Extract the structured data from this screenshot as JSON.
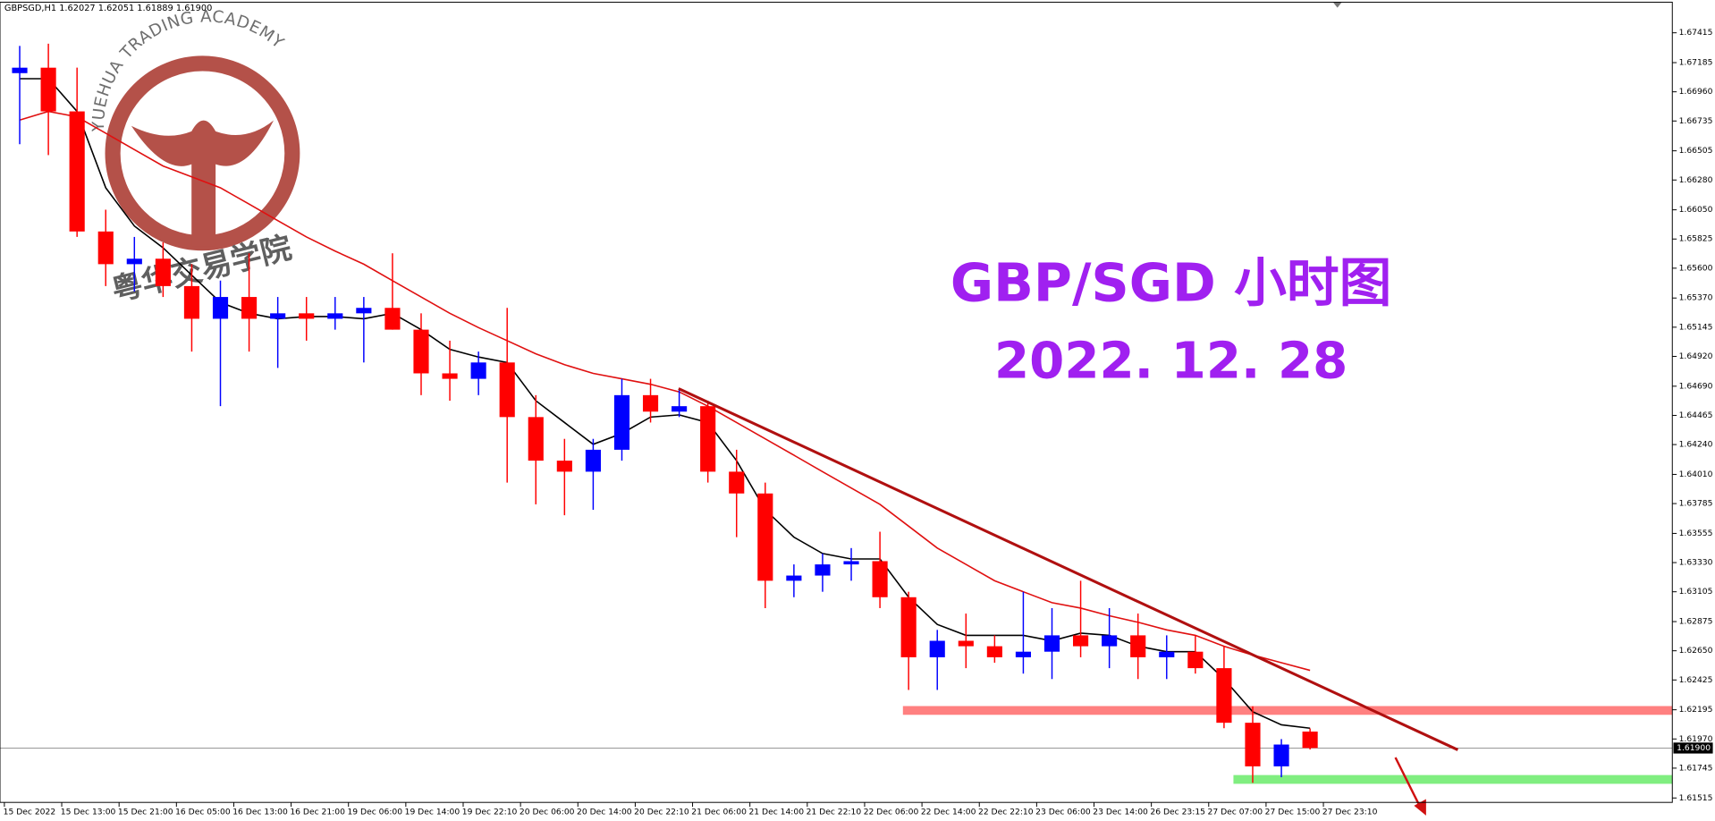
{
  "chart_data": {
    "type": "candlestick",
    "header": "GBPSGD,H1  1.62027 1.62051 1.61889 1.61900",
    "annotations": [
      "GBP/SGD 小时图",
      "2022. 12. 28"
    ],
    "watermark": [
      "YUEHUA TRADING ACADEMY",
      "粤华交易学院"
    ],
    "bull_color": "#0000ff",
    "bear_color": "#ff0000",
    "open": [
      1.67104,
      1.67146,
      1.66809,
      1.65883,
      1.65631,
      1.65673,
      1.65462,
      1.6521,
      1.65378,
      1.6521,
      1.65252,
      1.6521,
      1.65252,
      1.65294,
      1.65126,
      1.64789,
      1.64747,
      1.64873,
      1.64452,
      1.64116,
      1.64031,
      1.642,
      1.64621,
      1.64494,
      1.64536,
      1.64031,
      1.63863,
      1.6319,
      1.6323,
      1.63316,
      1.63341,
      1.63063,
      1.626,
      1.62727,
      1.62685,
      1.626,
      1.62643,
      1.62769,
      1.62685,
      1.62769,
      1.626,
      1.62643,
      1.62516,
      1.62095,
      1.61759,
      1.62027
    ],
    "high": [
      1.67314,
      1.67331,
      1.67146,
      1.66051,
      1.65841,
      1.65799,
      1.65631,
      1.65504,
      1.65715,
      1.65378,
      1.65378,
      1.65378,
      1.65378,
      1.65715,
      1.65252,
      1.65041,
      1.64957,
      1.65294,
      1.64621,
      1.64284,
      1.64284,
      1.64747,
      1.64747,
      1.64663,
      1.64578,
      1.642,
      1.63947,
      1.63316,
      1.634,
      1.63442,
      1.63568,
      1.63105,
      1.62811,
      1.62937,
      1.62769,
      1.63105,
      1.62979,
      1.6319,
      1.62979,
      1.62937,
      1.62769,
      1.62769,
      1.62685,
      1.62222,
      1.61969,
      1.62051
    ],
    "low": [
      1.66556,
      1.66472,
      1.65841,
      1.65462,
      1.6542,
      1.65378,
      1.64957,
      1.64536,
      1.64957,
      1.64831,
      1.65041,
      1.65126,
      1.64873,
      1.65126,
      1.64621,
      1.64578,
      1.64621,
      1.63947,
      1.63779,
      1.63695,
      1.63737,
      1.64116,
      1.6441,
      1.64452,
      1.63947,
      1.63526,
      1.62979,
      1.63063,
      1.63105,
      1.6319,
      1.62979,
      1.62348,
      1.62348,
      1.62516,
      1.62558,
      1.62474,
      1.62432,
      1.626,
      1.62516,
      1.62432,
      1.62432,
      1.62474,
      1.62053,
      1.61632,
      1.61675,
      1.61889
    ],
    "close": [
      1.67146,
      1.66809,
      1.65883,
      1.65631,
      1.65673,
      1.65462,
      1.6521,
      1.65378,
      1.6521,
      1.65252,
      1.6521,
      1.65252,
      1.65294,
      1.65126,
      1.64789,
      1.64747,
      1.64873,
      1.64452,
      1.64116,
      1.64031,
      1.642,
      1.64621,
      1.64494,
      1.64536,
      1.64031,
      1.63863,
      1.6319,
      1.6323,
      1.63316,
      1.63341,
      1.63063,
      1.626,
      1.62727,
      1.62685,
      1.626,
      1.62643,
      1.62769,
      1.62685,
      1.62769,
      1.626,
      1.62643,
      1.62516,
      1.62095,
      1.61759,
      1.61927,
      1.619
    ],
    "lines": [
      {
        "color": "#000000",
        "values": [
          1.67061,
          1.67061,
          1.66809,
          1.6622,
          1.65925,
          1.65757,
          1.65546,
          1.65336,
          1.65252,
          1.6521,
          1.65227,
          1.65227,
          1.6521,
          1.65252,
          1.65126,
          1.64974,
          1.64915,
          1.64873,
          1.64578,
          1.6441,
          1.64242,
          1.64326,
          1.64452,
          1.64469,
          1.6441,
          1.64116,
          1.63737,
          1.63526,
          1.634,
          1.63358,
          1.63358,
          1.63063,
          1.62853,
          1.62769,
          1.62769,
          1.62769,
          1.62727,
          1.62786,
          1.62769,
          1.62685,
          1.62643,
          1.62643,
          1.62432,
          1.6218,
          1.62079,
          1.62053
        ]
      },
      {
        "color": "#e01010",
        "values": [
          1.66742,
          1.66809,
          1.66767,
          1.66641,
          1.66514,
          1.66388,
          1.66304,
          1.6622,
          1.66094,
          1.65967,
          1.65841,
          1.65732,
          1.65631,
          1.65504,
          1.65378,
          1.65252,
          1.65142,
          1.65041,
          1.6494,
          1.64856,
          1.64789,
          1.64747,
          1.64705,
          1.64646,
          1.64536,
          1.6441,
          1.64284,
          1.64158,
          1.64031,
          1.63905,
          1.63779,
          1.63611,
          1.63442,
          1.63316,
          1.6319,
          1.63105,
          1.63021,
          1.62979,
          1.6292,
          1.6287,
          1.62811,
          1.62769,
          1.62685,
          1.62617,
          1.62558,
          1.62499
        ]
      }
    ],
    "zones": [
      {
        "price": 1.6219,
        "color": "#ff8080"
      },
      {
        "price": 1.61658,
        "color": "#80ee80"
      }
    ],
    "ylim": [
      1.61481,
      1.67651
    ],
    "yticks": [
      {
        "value": 1.67415,
        "label": "1.67415"
      },
      {
        "value": 1.67185,
        "label": "1.67185"
      },
      {
        "value": 1.6696,
        "label": "1.66960"
      },
      {
        "value": 1.66735,
        "label": "1.66735"
      },
      {
        "value": 1.66505,
        "label": "1.66505"
      },
      {
        "value": 1.6628,
        "label": "1.66280"
      },
      {
        "value": 1.6605,
        "label": "1.66050"
      },
      {
        "value": 1.65825,
        "label": "1.65825"
      },
      {
        "value": 1.656,
        "label": "1.65600"
      },
      {
        "value": 1.6537,
        "label": "1.65370"
      },
      {
        "value": 1.65145,
        "label": "1.65145"
      },
      {
        "value": 1.6492,
        "label": "1.64920"
      },
      {
        "value": 1.6469,
        "label": "1.64690"
      },
      {
        "value": 1.64465,
        "label": "1.64465"
      },
      {
        "value": 1.6424,
        "label": "1.64240"
      },
      {
        "value": 1.6401,
        "label": "1.64010"
      },
      {
        "value": 1.63785,
        "label": "1.63785"
      },
      {
        "value": 1.63555,
        "label": "1.63555"
      },
      {
        "value": 1.6333,
        "label": "1.63330"
      },
      {
        "value": 1.63105,
        "label": "1.63105"
      },
      {
        "value": 1.62875,
        "label": "1.62875"
      },
      {
        "value": 1.6265,
        "label": "1.62650"
      },
      {
        "value": 1.62425,
        "label": "1.62425"
      },
      {
        "value": 1.62195,
        "label": "1.62195"
      },
      {
        "value": 1.6197,
        "label": "1.61970"
      },
      {
        "value": 1.61745,
        "label": "1.61745"
      },
      {
        "value": 1.61515,
        "label": "1.61515"
      }
    ],
    "current_price": {
      "value": 1.619,
      "label": "1.61900"
    },
    "x_labels": [
      "15 Dec 2022",
      "15 Dec 13:00",
      "15 Dec 21:00",
      "16 Dec 05:00",
      "16 Dec 13:00",
      "16 Dec 21:00",
      "19 Dec 06:00",
      "19 Dec 14:00",
      "19 Dec 22:10",
      "20 Dec 06:00",
      "20 Dec 14:00",
      "20 Dec 22:10",
      "21 Dec 06:00",
      "21 Dec 14:00",
      "21 Dec 22:10",
      "22 Dec 06:00",
      "22 Dec 14:00",
      "22 Dec 22:10",
      "23 Dec 06:00",
      "23 Dec 14:00",
      "26 Dec 23:15",
      "27 Dec 07:00",
      "27 Dec 15:00",
      "27 Dec 23:10"
    ]
  }
}
